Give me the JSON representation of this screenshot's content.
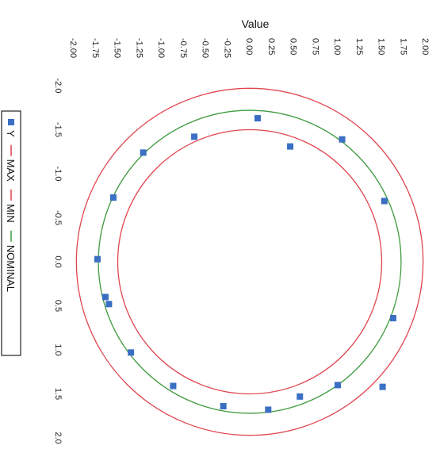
{
  "chart_data": {
    "type": "scatter",
    "orientation": "rotated-90-clockwise",
    "title": "",
    "value_axis": {
      "label": "Value",
      "range": [
        -2.0,
        2.0
      ],
      "ticks": [
        "-2.00",
        "-1.75",
        "-1.50",
        "-1.25",
        "-1.00",
        "-0.75",
        "-0.50",
        "-0.25",
        "0.00",
        "0.25",
        "0.50",
        "0.75",
        "1.00",
        "1.25",
        "1.50",
        "1.75",
        "2.00"
      ]
    },
    "second_axis": {
      "label": "",
      "range": [
        -2.0,
        2.0
      ],
      "ticks": [
        "-2.0",
        "-1.5",
        "-1.0",
        "-0.5",
        "0.0",
        "0.5",
        "1.0",
        "1.5",
        "2.0"
      ]
    },
    "grid": false,
    "legend_position": "left",
    "series": [
      {
        "name": "Y",
        "kind": "markers",
        "color": "#3a6fc4",
        "points": [
          {
            "x": -1.73,
            "y": -0.03
          },
          {
            "x": -1.6,
            "y": 0.48
          },
          {
            "x": -1.35,
            "y": 1.03
          },
          {
            "x": -0.87,
            "y": 1.41
          },
          {
            "x": -0.3,
            "y": 1.64
          },
          {
            "x": 0.21,
            "y": 1.68
          },
          {
            "x": 0.57,
            "y": 1.53
          },
          {
            "x": 1.0,
            "y": 1.4
          },
          {
            "x": 1.51,
            "y": 1.42
          },
          {
            "x": 1.63,
            "y": 0.64
          },
          {
            "x": 1.53,
            "y": -0.69
          },
          {
            "x": 1.05,
            "y": -1.39
          },
          {
            "x": 0.46,
            "y": -1.31
          },
          {
            "x": 0.09,
            "y": -1.63
          },
          {
            "x": -0.63,
            "y": -1.42
          },
          {
            "x": -1.21,
            "y": -1.24
          },
          {
            "x": -1.55,
            "y": -0.73
          },
          {
            "x": -1.64,
            "y": 0.4
          }
        ]
      },
      {
        "name": "MAX",
        "kind": "circle",
        "radius": 1.97,
        "color": "#e0454f"
      },
      {
        "name": "MIN",
        "kind": "circle",
        "radius": 1.5,
        "color": "#e0454f"
      },
      {
        "name": "NOMINAL",
        "kind": "circle",
        "radius": 1.72,
        "color": "#3f9a3f"
      }
    ]
  }
}
